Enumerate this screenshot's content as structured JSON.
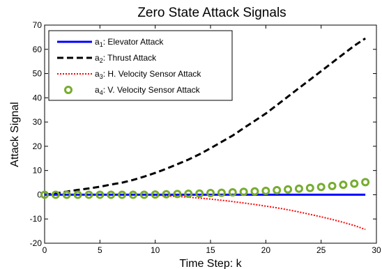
{
  "chart_data": {
    "type": "line",
    "title": "Zero State Attack Signals",
    "xlabel": "Time Step: k",
    "ylabel": "Attack Signal",
    "xlim": [
      0,
      30
    ],
    "ylim": [
      -20,
      70
    ],
    "xticks": [
      0,
      5,
      10,
      15,
      20,
      25,
      30
    ],
    "yticks": [
      -20,
      -10,
      0,
      10,
      20,
      30,
      40,
      50,
      60,
      70
    ],
    "grid": false,
    "legend_position": "top-left",
    "series": [
      {
        "name": "a1: Elevator Attack",
        "label_main": "a",
        "label_sub": "1",
        "label_rest": ": Elevator Attack",
        "style": "solid",
        "color": "#0000ff",
        "x": [
          0,
          1,
          2,
          3,
          4,
          5,
          6,
          7,
          8,
          9,
          10,
          11,
          12,
          13,
          14,
          15,
          16,
          17,
          18,
          19,
          20,
          21,
          22,
          23,
          24,
          25,
          26,
          27,
          28,
          29
        ],
        "values": [
          0,
          0,
          0,
          0,
          0,
          0,
          0,
          0,
          0,
          0,
          0,
          0,
          0,
          0,
          0,
          0,
          0,
          0,
          0,
          0,
          0,
          0,
          0,
          0,
          0,
          0,
          0,
          0,
          0,
          0
        ]
      },
      {
        "name": "a2: Thrust Attack",
        "label_main": "a",
        "label_sub": "2",
        "label_rest": ": Thrust Attack",
        "style": "dashed",
        "color": "#000000",
        "x": [
          0,
          1,
          2,
          3,
          4,
          5,
          6,
          7,
          8,
          9,
          10,
          11,
          12,
          13,
          14,
          15,
          16,
          17,
          18,
          19,
          20,
          21,
          22,
          23,
          24,
          25,
          26,
          27,
          28,
          29
        ],
        "values": [
          0,
          0.6,
          1.3,
          2.0,
          2.6,
          3.3,
          4.2,
          5.0,
          6.1,
          7.5,
          9.0,
          10.7,
          12.6,
          14.5,
          16.7,
          19.2,
          21.8,
          24.4,
          27.5,
          30.5,
          33.5,
          37.0,
          40.5,
          44.0,
          47.5,
          51.0,
          54.5,
          58.0,
          61.5,
          64.5
        ]
      },
      {
        "name": "a3: H. Velocity Sensor Attack",
        "label_main": "a",
        "label_sub": "3",
        "label_rest": ": H. Velocity Sensor Attack",
        "style": "dotted",
        "color": "#ff0000",
        "x": [
          0,
          1,
          2,
          3,
          4,
          5,
          6,
          7,
          8,
          9,
          10,
          11,
          12,
          13,
          14,
          15,
          16,
          17,
          18,
          19,
          20,
          21,
          22,
          23,
          24,
          25,
          26,
          27,
          28,
          29
        ],
        "values": [
          0,
          0,
          0,
          0,
          0,
          0,
          0,
          0,
          0,
          0,
          -0.2,
          -0.4,
          -0.7,
          -1.0,
          -1.4,
          -1.8,
          -2.3,
          -2.8,
          -3.4,
          -4.0,
          -4.7,
          -5.4,
          -6.2,
          -7.1,
          -8.1,
          -9.1,
          -10.2,
          -11.4,
          -12.7,
          -14.3
        ]
      },
      {
        "name": "a4: V. Velocity Sensor Attack",
        "label_main": "a",
        "label_sub": "4",
        "label_rest": ": V. Velocity Sensor Attack",
        "style": "circles",
        "color": "#77ac30",
        "x": [
          0,
          1,
          2,
          3,
          4,
          5,
          6,
          7,
          8,
          9,
          10,
          11,
          12,
          13,
          14,
          15,
          16,
          17,
          18,
          19,
          20,
          21,
          22,
          23,
          24,
          25,
          26,
          27,
          28,
          29
        ],
        "values": [
          0,
          0,
          0,
          0,
          0,
          0,
          0,
          0,
          0,
          0,
          0.1,
          0.2,
          0.3,
          0.4,
          0.5,
          0.7,
          0.8,
          1.0,
          1.2,
          1.4,
          1.6,
          1.9,
          2.2,
          2.5,
          2.8,
          3.2,
          3.6,
          4.1,
          4.6,
          5.2
        ]
      }
    ]
  }
}
